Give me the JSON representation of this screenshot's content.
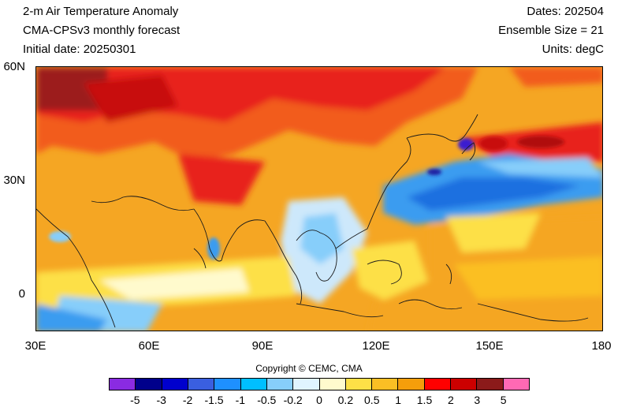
{
  "header": {
    "title": "2-m Air Temperature Anomaly",
    "subtitle": "CMA-CPSv3 monthly forecast",
    "initial_date": "Initial date: 20250301",
    "dates": "Dates: 202504",
    "ensemble": "Ensemble Size = 21",
    "units": "Units: degC"
  },
  "axes": {
    "lat_labels": [
      "60N",
      "30N",
      "0"
    ],
    "lon_labels": [
      "30E",
      "60E",
      "90E",
      "120E",
      "150E",
      "180"
    ]
  },
  "copyright": "Copyright © CEMC, CMA",
  "colorbar": {
    "labels": [
      "-5",
      "-3",
      "-2",
      "-1.5",
      "-1",
      "-0.5",
      "-0.2",
      "0",
      "0.2",
      "0.5",
      "1",
      "1.5",
      "2",
      "3",
      "5"
    ],
    "colors": [
      "#8a2be2",
      "#00008b",
      "#0000cd",
      "#3a5fe0",
      "#1e90ff",
      "#00bfff",
      "#87cefa",
      "#e0f4ff",
      "#fffacd",
      "#fde047",
      "#fbbf24",
      "#f59e0b",
      "#ff0000",
      "#cc0000",
      "#8b1a1a",
      "#ff69b4"
    ]
  },
  "map": {
    "region": "30E-180, 10S-60N",
    "dominant_color": "#f5a623",
    "warm_color": "#e8231a",
    "cool_color": "#3a9cf0"
  }
}
